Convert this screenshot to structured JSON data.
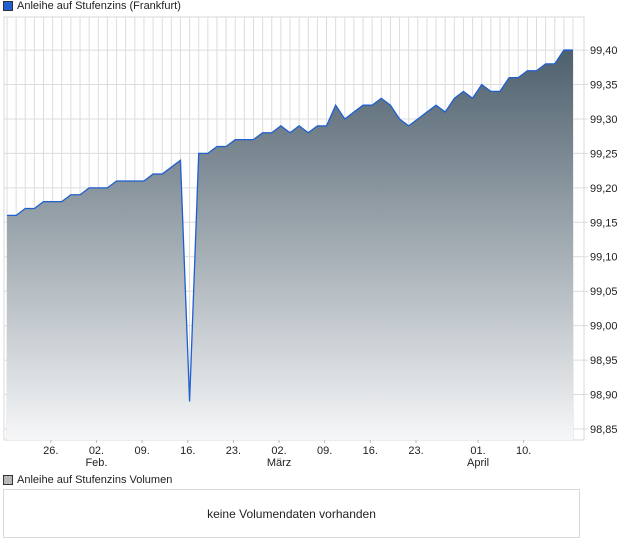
{
  "chart_data": {
    "type": "area",
    "title": "Anleihe auf Stufenzins (Frankfurt)",
    "line_color": "#1f5fd0",
    "fill_top_color": "#4e606d",
    "fill_bottom_color": "#f6f7f8",
    "ylim": [
      98.834,
      99.448
    ],
    "yticks": [
      "99,40",
      "99,35",
      "99,30",
      "99,25",
      "99,20",
      "99,15",
      "99,10",
      "99,05",
      "99,00",
      "98,95",
      "98,90",
      "98,85"
    ],
    "ytick_values": [
      99.4,
      99.35,
      99.3,
      99.25,
      99.2,
      99.15,
      99.1,
      99.05,
      99.0,
      98.95,
      98.9,
      98.85
    ],
    "xticks": [
      {
        "label": "26.",
        "month": "",
        "day_index": 4.8
      },
      {
        "label": "02.",
        "month": "Feb.",
        "day_index": 9.8
      },
      {
        "label": "09.",
        "month": "",
        "day_index": 14.8
      },
      {
        "label": "16.",
        "month": "",
        "day_index": 19.8
      },
      {
        "label": "23.",
        "month": "",
        "day_index": 24.8
      },
      {
        "label": "02.",
        "month": "März",
        "day_index": 29.8
      },
      {
        "label": "09.",
        "month": "",
        "day_index": 34.8
      },
      {
        "label": "16.",
        "month": "",
        "day_index": 39.8
      },
      {
        "label": "23.",
        "month": "",
        "day_index": 44.8
      },
      {
        "label": "01.",
        "month": "April",
        "day_index": 51.6
      },
      {
        "label": "10.",
        "month": "",
        "day_index": 56.6
      }
    ],
    "values": [
      99.16,
      99.16,
      99.17,
      99.17,
      99.18,
      99.18,
      99.18,
      99.19,
      99.19,
      99.2,
      99.2,
      99.2,
      99.21,
      99.21,
      99.21,
      99.21,
      99.22,
      99.22,
      99.23,
      99.24,
      98.89,
      99.25,
      99.25,
      99.26,
      99.26,
      99.27,
      99.27,
      99.27,
      99.28,
      99.28,
      99.29,
      99.28,
      99.29,
      99.28,
      99.29,
      99.29,
      99.32,
      99.3,
      99.31,
      99.32,
      99.32,
      99.33,
      99.32,
      99.3,
      99.29,
      99.3,
      99.31,
      99.32,
      99.31,
      99.33,
      99.34,
      99.33,
      99.35,
      99.34,
      99.34,
      99.36,
      99.36,
      99.37,
      99.37,
      99.38,
      99.38,
      99.4,
      99.4
    ]
  },
  "volume": {
    "title": "Anleihe auf Stufenzins Volumen",
    "message": "keine Volumendaten vorhanden"
  }
}
